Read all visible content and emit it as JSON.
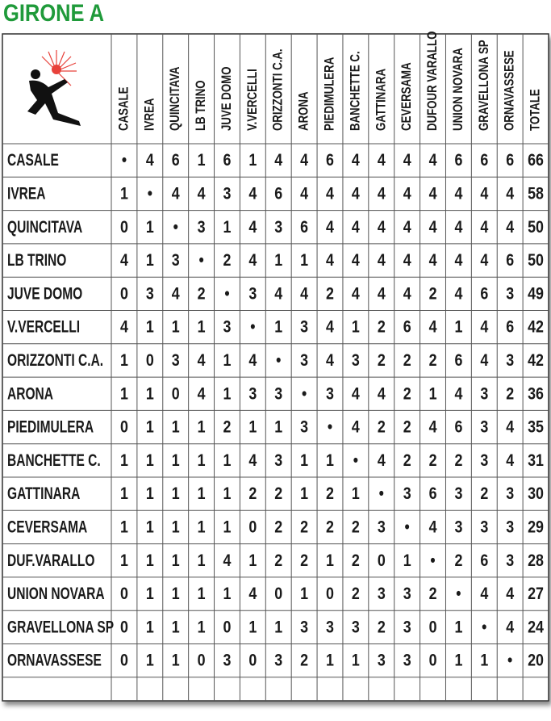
{
  "title": "GIRONE A",
  "table": {
    "columns": [
      "CASALE",
      "IVREA",
      "QUINCITAVA",
      "LB TRINO",
      "JUVE DOMO",
      "V.VERCELLI",
      "ORIZZONTI C.A.",
      "ARONA",
      "PIEDIMULERA",
      "BANCHETTE C.",
      "GATTINARA",
      "CEVERSAMA",
      "DUFOUR VARALLO",
      "UNION NOVARA",
      "GRAVELLONA SP",
      "ORNAVASSESE",
      "TOTALE"
    ],
    "rows": [
      {
        "team": "CASALE",
        "cells": [
          "•",
          4,
          6,
          1,
          6,
          1,
          4,
          4,
          6,
          4,
          4,
          4,
          4,
          6,
          6,
          6,
          66
        ]
      },
      {
        "team": "IVREA",
        "cells": [
          1,
          "•",
          4,
          4,
          3,
          4,
          6,
          4,
          4,
          4,
          4,
          4,
          4,
          4,
          4,
          4,
          58
        ]
      },
      {
        "team": "QUINCITAVA",
        "cells": [
          0,
          1,
          "•",
          3,
          1,
          4,
          3,
          6,
          4,
          4,
          4,
          4,
          4,
          4,
          4,
          4,
          50
        ]
      },
      {
        "team": "LB TRINO",
        "cells": [
          4,
          1,
          3,
          "•",
          2,
          4,
          1,
          1,
          4,
          4,
          4,
          4,
          4,
          4,
          4,
          6,
          50
        ]
      },
      {
        "team": "JUVE DOMO",
        "cells": [
          0,
          3,
          4,
          2,
          "•",
          3,
          4,
          4,
          2,
          4,
          4,
          4,
          2,
          4,
          6,
          3,
          49
        ]
      },
      {
        "team": "V.VERCELLI",
        "cells": [
          4,
          1,
          1,
          1,
          3,
          "•",
          1,
          3,
          4,
          1,
          2,
          6,
          4,
          1,
          4,
          6,
          42
        ]
      },
      {
        "team": "ORIZZONTI C.A.",
        "cells": [
          1,
          0,
          3,
          4,
          1,
          4,
          "•",
          3,
          4,
          3,
          2,
          2,
          2,
          6,
          4,
          3,
          42
        ]
      },
      {
        "team": "ARONA",
        "cells": [
          1,
          1,
          0,
          4,
          1,
          3,
          3,
          "•",
          3,
          4,
          4,
          2,
          1,
          4,
          3,
          2,
          36
        ]
      },
      {
        "team": "PIEDIMULERA",
        "cells": [
          0,
          1,
          1,
          1,
          2,
          1,
          1,
          3,
          "•",
          4,
          2,
          2,
          4,
          6,
          3,
          4,
          35
        ]
      },
      {
        "team": "BANCHETTE C.",
        "cells": [
          1,
          1,
          1,
          1,
          1,
          4,
          3,
          1,
          1,
          "•",
          4,
          2,
          2,
          2,
          3,
          4,
          31
        ]
      },
      {
        "team": "GATTINARA",
        "cells": [
          1,
          1,
          1,
          1,
          1,
          2,
          2,
          1,
          2,
          1,
          "•",
          3,
          6,
          3,
          2,
          3,
          30
        ]
      },
      {
        "team": "CEVERSAMA",
        "cells": [
          1,
          1,
          1,
          1,
          1,
          0,
          2,
          2,
          2,
          2,
          3,
          "•",
          4,
          3,
          3,
          3,
          29
        ]
      },
      {
        "team": "DUF.VARALLO",
        "cells": [
          1,
          1,
          1,
          1,
          4,
          1,
          2,
          2,
          1,
          2,
          0,
          1,
          "•",
          2,
          6,
          3,
          28
        ]
      },
      {
        "team": "UNION NOVARA",
        "cells": [
          0,
          1,
          1,
          1,
          1,
          4,
          0,
          1,
          0,
          2,
          3,
          3,
          2,
          "•",
          4,
          4,
          27
        ]
      },
      {
        "team": "GRAVELLONA SP",
        "cells": [
          0,
          1,
          1,
          1,
          0,
          1,
          1,
          3,
          3,
          3,
          2,
          3,
          0,
          1,
          "•",
          4,
          24
        ]
      },
      {
        "team": "ORNAVASSESE",
        "cells": [
          0,
          1,
          1,
          0,
          3,
          0,
          3,
          2,
          1,
          1,
          3,
          3,
          0,
          1,
          1,
          "•",
          20
        ]
      }
    ]
  }
}
